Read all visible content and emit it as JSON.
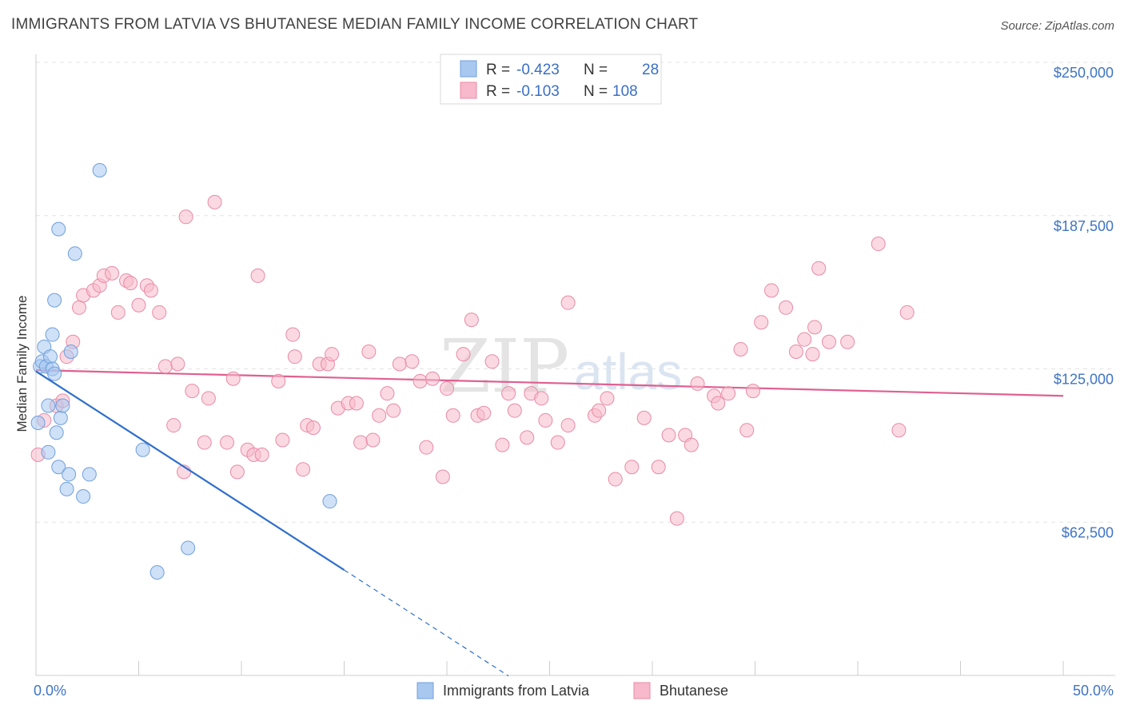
{
  "title": "IMMIGRANTS FROM LATVIA VS BHUTANESE MEDIAN FAMILY INCOME CORRELATION CHART",
  "source": "Source: ZipAtlas.com",
  "colors": {
    "blue": "#a8c8f0",
    "blue_stroke": "#6f9fdc",
    "blue_line": "#2f6fcc",
    "pink": "#f7b9cb",
    "pink_stroke": "#e88aa6",
    "pink_line": "#e06090",
    "tick_text": "#3f74c4"
  },
  "legend": {
    "row1": {
      "r_label": "R =",
      "r_value": "-0.423",
      "n_label": "N =",
      "n_value": "28"
    },
    "row2": {
      "r_label": "R =",
      "r_value": "-0.103",
      "n_label": "N =",
      "n_value": "108"
    }
  },
  "watermark": {
    "zip": "ZIP",
    "atlas": "atlas"
  },
  "chart_data": {
    "type": "scatter",
    "xlabel": "",
    "ylabel": "Median Family Income",
    "xlim": [
      0,
      50
    ],
    "ylim": [
      0,
      250000
    ],
    "x_tick_labels": [
      "0.0%",
      "50.0%"
    ],
    "y_ticks": [
      62500,
      125000,
      187500,
      250000
    ],
    "y_tick_labels": [
      "$62,500",
      "$125,000",
      "$187,500",
      "$250,000"
    ],
    "series": [
      {
        "name": "Immigrants from Latvia",
        "color": "#a8c8f0",
        "trend": {
          "x0": 0,
          "y0": 124000,
          "x1": 15,
          "y1": 43000,
          "dash_to_x": 23
        },
        "points": [
          [
            0.2,
            126000
          ],
          [
            0.3,
            128000
          ],
          [
            0.4,
            134000
          ],
          [
            0.5,
            126000
          ],
          [
            0.7,
            130000
          ],
          [
            0.8,
            125000
          ],
          [
            0.9,
            123000
          ],
          [
            0.6,
            110000
          ],
          [
            0.8,
            139000
          ],
          [
            0.9,
            153000
          ],
          [
            1.0,
            99000
          ],
          [
            1.1,
            182000
          ],
          [
            1.2,
            105000
          ],
          [
            1.3,
            110000
          ],
          [
            0.6,
            91000
          ],
          [
            1.1,
            85000
          ],
          [
            1.5,
            76000
          ],
          [
            1.6,
            82000
          ],
          [
            1.7,
            132000
          ],
          [
            1.9,
            172000
          ],
          [
            2.3,
            73000
          ],
          [
            2.6,
            82000
          ],
          [
            3.1,
            206000
          ],
          [
            5.2,
            92000
          ],
          [
            5.9,
            42000
          ],
          [
            7.4,
            52000
          ],
          [
            14.3,
            71000
          ],
          [
            0.1,
            103000
          ]
        ]
      },
      {
        "name": "Bhutanese",
        "color": "#f7b9cb",
        "trend": {
          "x0": 0,
          "y0": 124500,
          "x1": 50,
          "y1": 114000
        },
        "points": [
          [
            0.1,
            90000
          ],
          [
            0.4,
            104000
          ],
          [
            1.0,
            110000
          ],
          [
            1.3,
            112000
          ],
          [
            1.5,
            130000
          ],
          [
            1.8,
            136000
          ],
          [
            2.1,
            150000
          ],
          [
            2.3,
            155000
          ],
          [
            2.8,
            157000
          ],
          [
            3.1,
            159000
          ],
          [
            3.3,
            163000
          ],
          [
            3.7,
            164000
          ],
          [
            4.0,
            148000
          ],
          [
            4.4,
            161000
          ],
          [
            4.6,
            160000
          ],
          [
            5.0,
            151000
          ],
          [
            5.4,
            159000
          ],
          [
            5.6,
            157000
          ],
          [
            6.0,
            148000
          ],
          [
            6.3,
            126000
          ],
          [
            6.7,
            102000
          ],
          [
            6.9,
            127000
          ],
          [
            7.2,
            83000
          ],
          [
            7.3,
            187000
          ],
          [
            7.6,
            116000
          ],
          [
            8.2,
            95000
          ],
          [
            8.4,
            113000
          ],
          [
            8.7,
            193000
          ],
          [
            9.3,
            95000
          ],
          [
            9.6,
            121000
          ],
          [
            9.8,
            83000
          ],
          [
            10.3,
            92000
          ],
          [
            10.6,
            90000
          ],
          [
            11.0,
            90000
          ],
          [
            10.8,
            163000
          ],
          [
            11.8,
            120000
          ],
          [
            12.0,
            96000
          ],
          [
            12.5,
            139000
          ],
          [
            12.6,
            130000
          ],
          [
            13.0,
            84000
          ],
          [
            13.2,
            102000
          ],
          [
            13.5,
            101000
          ],
          [
            13.8,
            127000
          ],
          [
            14.2,
            127000
          ],
          [
            14.4,
            131000
          ],
          [
            14.7,
            109000
          ],
          [
            15.2,
            111000
          ],
          [
            15.6,
            111000
          ],
          [
            15.8,
            95000
          ],
          [
            16.2,
            132000
          ],
          [
            16.4,
            96000
          ],
          [
            16.7,
            106000
          ],
          [
            17.1,
            115000
          ],
          [
            17.4,
            108000
          ],
          [
            17.7,
            127000
          ],
          [
            18.3,
            128000
          ],
          [
            18.7,
            120000
          ],
          [
            19.0,
            93000
          ],
          [
            19.3,
            121000
          ],
          [
            19.8,
            81000
          ],
          [
            20.0,
            117000
          ],
          [
            20.3,
            106000
          ],
          [
            20.8,
            131000
          ],
          [
            21.2,
            145000
          ],
          [
            21.5,
            106000
          ],
          [
            21.8,
            107000
          ],
          [
            22.2,
            128000
          ],
          [
            22.7,
            94000
          ],
          [
            23.0,
            115000
          ],
          [
            23.3,
            108000
          ],
          [
            23.9,
            97000
          ],
          [
            24.1,
            115000
          ],
          [
            24.6,
            113000
          ],
          [
            24.8,
            104000
          ],
          [
            25.4,
            95000
          ],
          [
            25.9,
            152000
          ],
          [
            25.9,
            102000
          ],
          [
            27.2,
            106000
          ],
          [
            27.4,
            108000
          ],
          [
            27.8,
            113000
          ],
          [
            28.2,
            80000
          ],
          [
            29.0,
            85000
          ],
          [
            29.6,
            105000
          ],
          [
            30.3,
            85000
          ],
          [
            30.8,
            98000
          ],
          [
            31.2,
            64000
          ],
          [
            31.6,
            98000
          ],
          [
            31.9,
            94000
          ],
          [
            32.2,
            119000
          ],
          [
            33.0,
            114000
          ],
          [
            33.2,
            111000
          ],
          [
            33.7,
            115000
          ],
          [
            34.3,
            133000
          ],
          [
            34.6,
            100000
          ],
          [
            34.9,
            116000
          ],
          [
            35.3,
            144000
          ],
          [
            35.8,
            157000
          ],
          [
            36.5,
            150000
          ],
          [
            37.0,
            132000
          ],
          [
            37.4,
            137000
          ],
          [
            37.8,
            131000
          ],
          [
            37.9,
            142000
          ],
          [
            38.1,
            166000
          ],
          [
            38.6,
            136000
          ],
          [
            39.5,
            136000
          ],
          [
            41.0,
            176000
          ],
          [
            42.0,
            100000
          ],
          [
            42.4,
            148000
          ]
        ]
      }
    ]
  },
  "bottom_legend": {
    "item1": "Immigrants from Latvia",
    "item2": "Bhutanese"
  }
}
